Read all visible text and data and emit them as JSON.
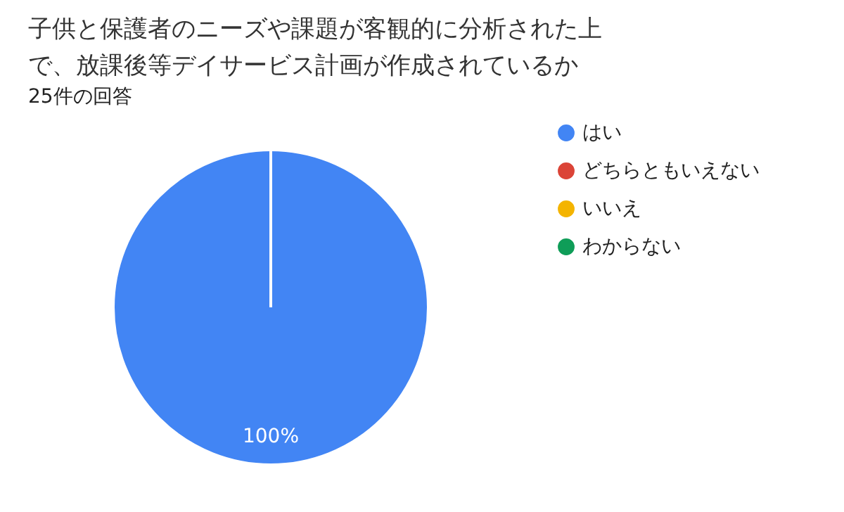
{
  "chart_data": {
    "type": "pie",
    "title": "子供と保護者のニーズや課題が客観的に分析された上で、放課後等デイサービス計画が作成されているか",
    "subtitle": "25件の回答",
    "categories": [
      "はい",
      "どちらともいえない",
      "いいえ",
      "わからない"
    ],
    "values": [
      100,
      0,
      0,
      0
    ],
    "colors": [
      "#4285f4",
      "#db4437",
      "#f4b400",
      "#0f9d58"
    ],
    "value_labels": [
      "100%",
      null,
      null,
      null
    ],
    "legend": "right"
  }
}
